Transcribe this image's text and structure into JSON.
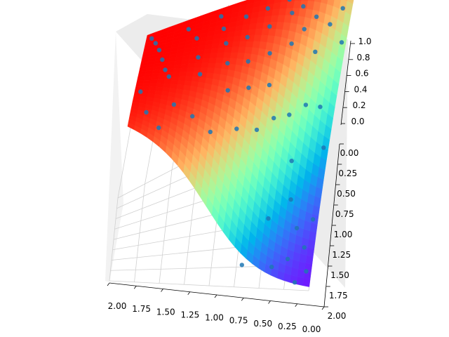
{
  "chart_data": {
    "type": "surface3d",
    "title": "",
    "xlabel": "",
    "ylabel": "",
    "zlabel": "",
    "x_ticks": [
      "2.00",
      "1.75",
      "1.50",
      "1.25",
      "1.00",
      "0.75",
      "0.50",
      "0.25",
      "0.00"
    ],
    "y_ticks": [
      "0.00",
      "0.25",
      "0.50",
      "0.75",
      "1.00",
      "1.25",
      "1.50",
      "1.75",
      "2.00"
    ],
    "z_ticks": [
      "0.0",
      "0.2",
      "0.4",
      "0.6",
      "0.8",
      "1.0"
    ],
    "xlim": [
      0,
      2
    ],
    "ylim": [
      0,
      2
    ],
    "zlim": [
      0,
      1
    ],
    "surface": {
      "description": "sigmoid-like surface, high (red) on the large-x / small-y side, falling to low (purple) toward small x / large y",
      "colormap": "rainbow",
      "value_range": [
        0,
        1
      ]
    },
    "scatter": {
      "color": "#1f77b4",
      "points": [
        [
          1.95,
          0.05,
          0.98
        ],
        [
          1.9,
          0.2,
          0.98
        ],
        [
          1.85,
          0.35,
          0.97
        ],
        [
          1.8,
          0.55,
          0.96
        ],
        [
          1.75,
          0.75,
          0.95
        ],
        [
          1.7,
          0.9,
          0.95
        ],
        [
          1.95,
          1.1,
          0.93
        ],
        [
          1.6,
          0.1,
          0.97
        ],
        [
          1.5,
          0.3,
          0.96
        ],
        [
          1.45,
          0.6,
          0.94
        ],
        [
          1.4,
          0.85,
          0.92
        ],
        [
          1.3,
          0.05,
          0.96
        ],
        [
          1.25,
          0.25,
          0.95
        ],
        [
          1.2,
          0.45,
          0.93
        ],
        [
          1.15,
          0.7,
          0.9
        ],
        [
          1.1,
          1.0,
          0.85
        ],
        [
          1.05,
          0.15,
          0.94
        ],
        [
          1.0,
          0.4,
          0.91
        ],
        [
          0.95,
          0.65,
          0.86
        ],
        [
          0.9,
          0.9,
          0.8
        ],
        [
          0.85,
          0.1,
          0.92
        ],
        [
          0.8,
          0.3,
          0.89
        ],
        [
          0.75,
          0.55,
          0.83
        ],
        [
          0.7,
          0.8,
          0.74
        ],
        [
          0.65,
          0.05,
          0.9
        ],
        [
          0.6,
          0.2,
          0.88
        ],
        [
          0.55,
          0.45,
          0.8
        ],
        [
          0.5,
          0.15,
          0.87
        ],
        [
          0.45,
          0.35,
          0.82
        ],
        [
          0.4,
          0.05,
          0.88
        ],
        [
          0.35,
          0.25,
          0.82
        ],
        [
          0.3,
          0.5,
          0.72
        ],
        [
          0.25,
          0.1,
          0.84
        ],
        [
          0.2,
          0.3,
          0.76
        ],
        [
          0.15,
          0.05,
          0.85
        ],
        [
          0.1,
          0.2,
          0.78
        ],
        [
          0.05,
          0.4,
          0.66
        ],
        [
          1.6,
          1.3,
          0.9
        ],
        [
          1.4,
          1.4,
          0.86
        ],
        [
          1.2,
          1.5,
          0.8
        ],
        [
          0.95,
          1.25,
          0.7
        ],
        [
          0.75,
          1.1,
          0.6
        ],
        [
          0.6,
          0.95,
          0.58
        ],
        [
          0.45,
          0.85,
          0.52
        ],
        [
          0.3,
          0.75,
          0.5
        ],
        [
          0.15,
          0.7,
          0.42
        ],
        [
          0.05,
          0.95,
          0.28
        ],
        [
          0.5,
          1.55,
          0.22
        ],
        [
          0.3,
          1.3,
          0.18
        ],
        [
          0.2,
          1.5,
          0.1
        ],
        [
          0.1,
          1.65,
          0.06
        ],
        [
          0.05,
          1.85,
          0.03
        ],
        [
          0.25,
          1.75,
          0.05
        ],
        [
          0.15,
          1.95,
          0.02
        ],
        [
          0.4,
          1.85,
          0.06
        ],
        [
          0.7,
          1.9,
          0.1
        ],
        [
          0.05,
          1.4,
          0.08
        ],
        [
          0.35,
          1.05,
          0.3
        ],
        [
          1.85,
          1.6,
          0.94
        ],
        [
          1.7,
          1.85,
          0.93
        ]
      ]
    }
  }
}
